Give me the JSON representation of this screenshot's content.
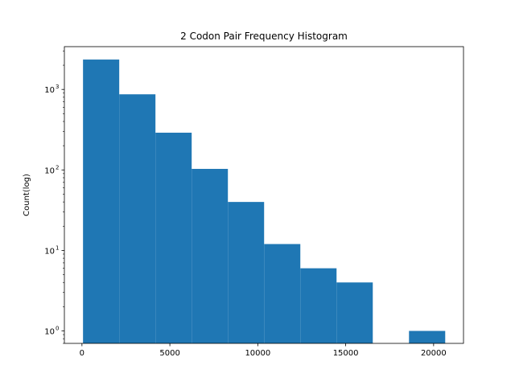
{
  "chart_data": {
    "type": "bar",
    "title": "2 Codon Pair Frequency Histogram",
    "xlabel": "",
    "ylabel": "Count(log)",
    "y_scale": "log",
    "x_range": [
      -1000,
      21700
    ],
    "y_range": [
      0.7,
      3400
    ],
    "x_ticks": [
      0,
      5000,
      10000,
      15000,
      20000
    ],
    "x_tick_labels": [
      "0",
      "5000",
      "10000",
      "15000",
      "20000"
    ],
    "y_ticks": [
      1,
      10,
      100,
      1000
    ],
    "y_tick_labels": [
      "10",
      "10",
      "10",
      "10"
    ],
    "y_tick_exponents": [
      "0",
      "1",
      "2",
      "3"
    ],
    "grid": false,
    "bar_color": "#1f77b4",
    "bins": [
      {
        "start": 60,
        "end": 2120,
        "count": 2350
      },
      {
        "start": 2120,
        "end": 4180,
        "count": 870
      },
      {
        "start": 4180,
        "end": 6240,
        "count": 290
      },
      {
        "start": 6240,
        "end": 8300,
        "count": 103
      },
      {
        "start": 8300,
        "end": 10360,
        "count": 40
      },
      {
        "start": 10360,
        "end": 12420,
        "count": 12
      },
      {
        "start": 12420,
        "end": 14480,
        "count": 6
      },
      {
        "start": 14480,
        "end": 16540,
        "count": 4
      },
      {
        "start": 16540,
        "end": 18600,
        "count": 0
      },
      {
        "start": 18600,
        "end": 20660,
        "count": 1
      }
    ]
  }
}
